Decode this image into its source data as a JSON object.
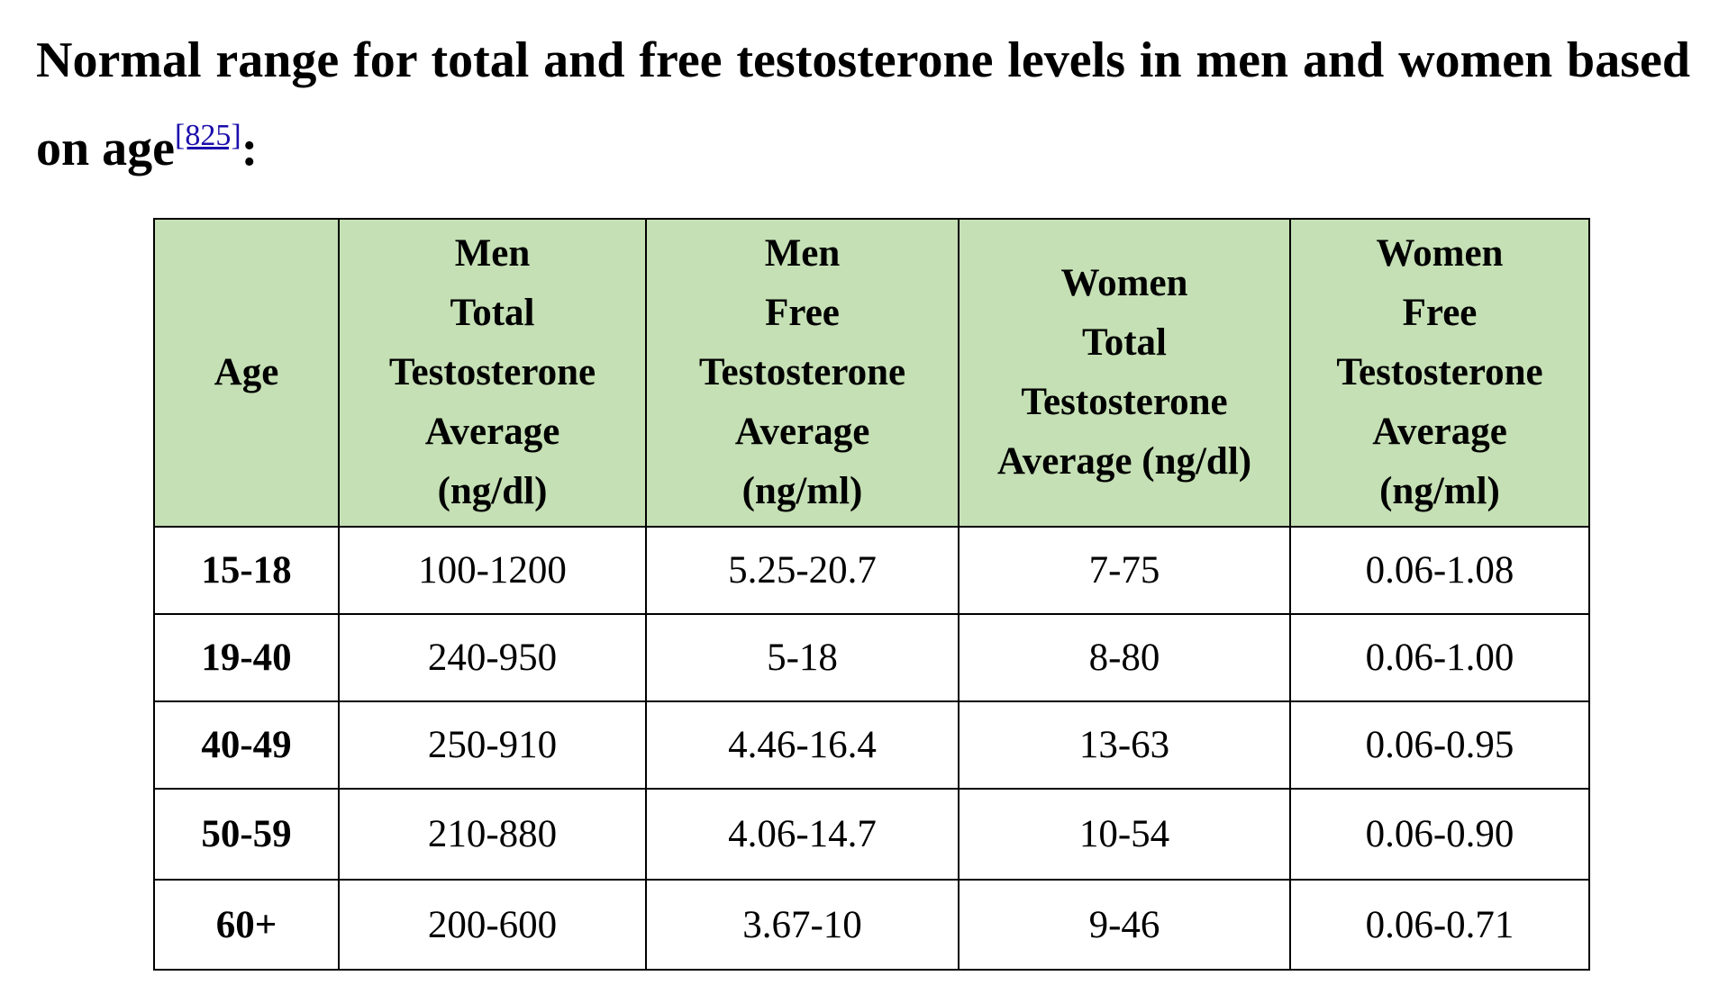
{
  "heading": {
    "text_before": "Normal range for total and free testosterone levels in men and women based on age",
    "reference": "[825]",
    "text_after": ":"
  },
  "table": {
    "columns": [
      {
        "lines": [
          "Age"
        ]
      },
      {
        "lines": [
          "Men",
          "Total",
          "Testosterone",
          "Average",
          "(ng/dl)"
        ]
      },
      {
        "lines": [
          "Men",
          "Free",
          "Testosterone",
          "Average",
          "(ng/ml)"
        ]
      },
      {
        "lines": [
          "Women",
          "Total",
          "Testosterone",
          "Average (ng/dl)"
        ]
      },
      {
        "lines": [
          "Women",
          "Free",
          "Testosterone",
          "Average",
          "(ng/ml)"
        ]
      }
    ],
    "rows": [
      {
        "age": "15-18",
        "men_total": "100-1200",
        "men_free": "5.25-20.7",
        "women_total": "7-75",
        "women_free": "0.06-1.08"
      },
      {
        "age": "19-40",
        "men_total": "240-950",
        "men_free": "5-18",
        "women_total": "8-80",
        "women_free": "0.06-1.00"
      },
      {
        "age": "40-49",
        "men_total": "250-910",
        "men_free": "4.46-16.4",
        "women_total": "13-63",
        "women_free": "0.06-0.95"
      },
      {
        "age": "50-59",
        "men_total": "210-880",
        "men_free": "4.06-14.7",
        "women_total": "10-54",
        "women_free": "0.06-0.90"
      },
      {
        "age": "60+",
        "men_total": "200-600",
        "men_free": "3.67-10",
        "women_total": "9-46",
        "women_free": "0.06-0.71"
      }
    ]
  },
  "colors": {
    "header_background": "#c5e0b4",
    "link": "#1a0dab"
  }
}
